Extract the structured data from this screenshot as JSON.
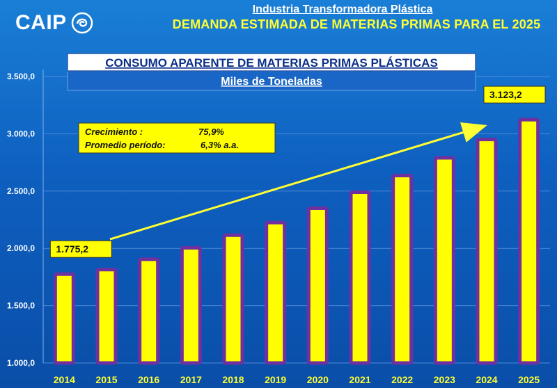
{
  "header": {
    "logo_text": "CAIP",
    "logo_mark_icon": "swirl-logo-icon",
    "supertitle": "Industria Transformadora Plástica",
    "title": "DEMANDA ESTIMADA DE MATERIAS PRIMAS PARA EL 2025"
  },
  "banner": {
    "title": "CONSUMO APARENTE DE MATERIAS PRIMAS PLÁSTICAS",
    "subtitle": "Miles de Toneladas"
  },
  "growth_box": {
    "line1_label": "Crecimiento :",
    "line1_value": "75,9%",
    "line2_label": "Promedio período:",
    "line2_value": "6,3% a.a."
  },
  "colors": {
    "bar_fill": "#ffff00",
    "bar_border": "#7030a0",
    "background": "#0e5fbf",
    "title": "#ffff33",
    "arrow": "#ffff33",
    "callout_fill": "#ffff00"
  },
  "chart_data": {
    "type": "bar",
    "title": "CONSUMO APARENTE DE MATERIAS PRIMAS PLÁSTICAS",
    "subtitle": "Miles de Toneladas",
    "categories": [
      "2014",
      "2015",
      "2016",
      "2017",
      "2018",
      "2019",
      "2020",
      "2021",
      "2022",
      "2023",
      "2024",
      "2025"
    ],
    "values": [
      1775.2,
      1815,
      1905,
      2005,
      2115,
      2225,
      2350,
      2490,
      2635,
      2790,
      2950,
      3123.2
    ],
    "ylim": [
      1000,
      3500
    ],
    "yticks": [
      "1.000,0",
      "1.500,0",
      "2.000,0",
      "2.500,0",
      "3.000,0",
      "3.500,0"
    ],
    "ytick_values": [
      1000,
      1500,
      2000,
      2500,
      3000,
      3500
    ],
    "grid": true,
    "annotations": [
      {
        "category": "2014",
        "label": "1.775,2"
      },
      {
        "category": "2025",
        "label": "3.123,2"
      }
    ],
    "trend_arrow": {
      "from_category": "2015",
      "from_value": 2080,
      "to_category": "2024",
      "to_value": 3065
    }
  }
}
